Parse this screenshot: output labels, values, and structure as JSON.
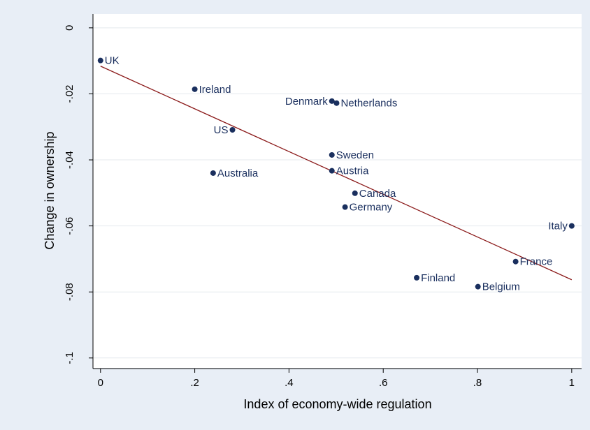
{
  "chart_data": {
    "type": "scatter",
    "xlabel": "Index of economy-wide regulation",
    "ylabel": "Change in ownership",
    "labels": [
      "UK",
      "Ireland",
      "Denmark",
      "Netherlands",
      "US",
      "Sweden",
      "Australia",
      "Austria",
      "Canada",
      "Germany",
      "Italy",
      "France",
      "Finland",
      "Belgium"
    ],
    "x": [
      0,
      0.2,
      0.491,
      0.501,
      0.28,
      0.491,
      0.239,
      0.491,
      0.54,
      0.519,
      1.0,
      0.881,
      0.671,
      0.801
    ],
    "values": [
      -0.0099,
      -0.0186,
      -0.0222,
      -0.0228,
      -0.0309,
      -0.0385,
      -0.044,
      -0.0433,
      -0.0501,
      -0.0543,
      -0.06,
      -0.0708,
      -0.0757,
      -0.0784
    ],
    "label_position": [
      3,
      3,
      9,
      3,
      9,
      3,
      3,
      3,
      3,
      3,
      9,
      3,
      3,
      3
    ],
    "color": "#1a2f5e",
    "fit": {
      "x": [
        0,
        1
      ],
      "values": [
        -0.0116,
        -0.0763
      ],
      "color": "#8b1a1a"
    },
    "xlim": [
      -0.016,
      1.021
    ],
    "ylim": [
      -0.103,
      0.0042
    ],
    "xticks": [
      0,
      {
        "value": 0.2,
        "label": ".2"
      },
      {
        "value": 0.4,
        "label": ".4"
      },
      {
        "value": 0.6,
        "label": ".6"
      },
      {
        "value": 0.8,
        "label": ".8"
      },
      1
    ],
    "yticks": [
      0,
      {
        "value": -0.02,
        "label": "-.02"
      },
      {
        "value": -0.04,
        "label": "-.04"
      },
      {
        "value": -0.06,
        "label": "-.06"
      },
      {
        "value": -0.08,
        "label": "-.08"
      },
      {
        "value": -0.1,
        "label": "-.1"
      }
    ],
    "grid": true
  }
}
